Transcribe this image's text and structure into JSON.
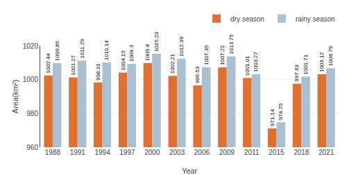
{
  "chart_data": {
    "type": "bar",
    "xlabel": "Year",
    "ylabel": "Area(km²)",
    "categories": [
      "1988",
      "1991",
      "1994",
      "1997",
      "2000",
      "2003",
      "2006",
      "2009",
      "2011",
      "2015",
      "2018",
      "2021"
    ],
    "series": [
      {
        "name": "dry season",
        "color": "#E07030",
        "values": [
          1002.44,
          1001.27,
          998.31,
          1004.15,
          1009.8,
          1002.21,
          996.53,
          1007.22,
          1001.01,
          971.14,
          997.63,
          1003.12
        ]
      },
      {
        "name": "rainy season",
        "color": "#A8C0D0",
        "values": [
          1009.85,
          1011.29,
          1010.14,
          1009.3,
          1015.23,
          1012.39,
          1007.35,
          1013.75,
          1003.27,
          974.75,
          1001.71,
          1006.79
        ]
      }
    ],
    "ylim": [
      960,
      1020
    ],
    "yticks": [
      960,
      980,
      1000,
      1020
    ],
    "grid": true,
    "legend": "upper right",
    "data_labels": true
  }
}
